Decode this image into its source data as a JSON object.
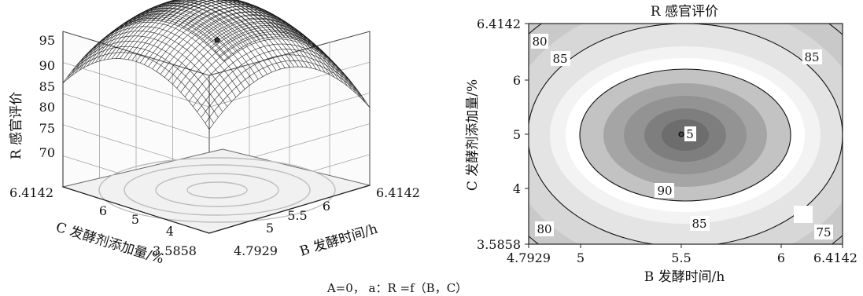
{
  "caption": "A=0， a：R =f（B，C）",
  "chart_data": [
    {
      "type": "surface",
      "zlabel": "R 感官评价",
      "xlabel": "C 发酵剂添加量/%",
      "ylabel": "B 发酵时间/h",
      "z_ticks": [
        "95",
        "90",
        "85",
        "80",
        "75",
        "70"
      ],
      "x_ticks": [
        "6.4142",
        "6",
        "5",
        "4",
        "3.5858"
      ],
      "y_ticks": [
        "4.7929",
        "5",
        "5.5",
        "6",
        "6.4142"
      ],
      "x_range": [
        3.5858,
        6.4142
      ],
      "y_range": [
        4.7929,
        6.4142
      ],
      "z_range": [
        70,
        95
      ],
      "peak": {
        "B": 5.5,
        "C": 5.0,
        "R": 93
      },
      "corner_values": {
        "B_min_C_min": 72,
        "B_min_C_max": 76,
        "B_max_C_min": 71,
        "B_max_C_max": 76
      }
    },
    {
      "type": "contour",
      "title": "R 感官评价",
      "xlabel": "B 发酵时间/h",
      "ylabel": "C 发酵剂添加量/%",
      "x_ticks": [
        "4.7929",
        "5",
        "5.5",
        "6",
        "6.4142"
      ],
      "y_ticks": [
        "6.4142",
        "6",
        "5",
        "4",
        "3.5858"
      ],
      "xlim": [
        4.7929,
        6.4142
      ],
      "ylim": [
        3.5858,
        6.4142
      ],
      "center": {
        "B": 5.5,
        "C": 5.0
      },
      "levels": [
        75,
        80,
        85,
        90
      ],
      "contour_labels": [
        "80",
        "85",
        "85",
        "5",
        "90",
        "85",
        "80",
        "75"
      ]
    }
  ]
}
